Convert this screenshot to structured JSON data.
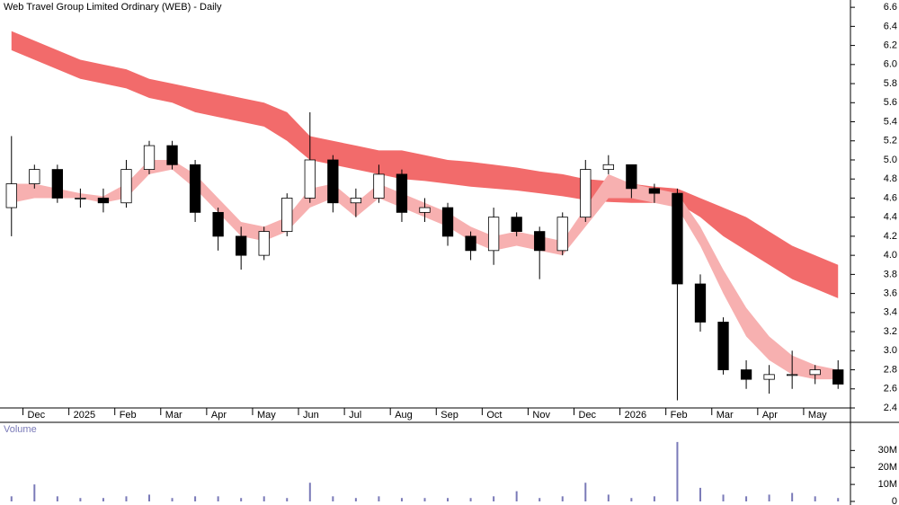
{
  "chart_data": [
    {
      "type": "candlestick",
      "title": "Web Travel Group Limited Ordinary (WEB) - Daily",
      "categories": [
        null,
        "Dec",
        null,
        "2025",
        null,
        "Feb",
        null,
        "Mar",
        null,
        "Apr",
        null,
        "May",
        null,
        "Jun",
        null,
        "Jul",
        null,
        "Aug",
        null,
        "Sep",
        null,
        "Oct",
        null,
        "Nov",
        null,
        "Dec",
        null,
        "2026",
        null,
        "Feb",
        null,
        "Mar",
        null,
        "Apr",
        null,
        "May",
        null
      ],
      "open": [
        4.5,
        4.75,
        4.9,
        4.6,
        4.6,
        4.55,
        4.9,
        5.15,
        4.95,
        4.45,
        4.2,
        4.0,
        4.25,
        4.6,
        5.0,
        4.55,
        4.6,
        4.85,
        4.45,
        4.5,
        4.2,
        4.05,
        4.4,
        4.25,
        4.05,
        4.4,
        4.9,
        4.95,
        4.7,
        4.65,
        3.7,
        3.3,
        2.8,
        2.7,
        2.75,
        2.75,
        2.8
      ],
      "high": [
        5.25,
        4.95,
        4.95,
        4.7,
        4.7,
        5.0,
        5.2,
        5.2,
        5.0,
        4.5,
        4.3,
        4.3,
        4.65,
        5.5,
        5.05,
        4.7,
        4.95,
        4.9,
        4.6,
        4.55,
        4.25,
        4.5,
        4.45,
        4.3,
        4.45,
        5.0,
        5.05,
        4.95,
        4.75,
        4.7,
        3.8,
        3.35,
        2.9,
        2.85,
        3.0,
        2.85,
        2.9
      ],
      "low": [
        4.2,
        4.7,
        4.55,
        4.5,
        4.45,
        4.5,
        4.85,
        4.9,
        4.35,
        4.05,
        3.85,
        3.95,
        4.2,
        4.55,
        4.45,
        4.4,
        4.55,
        4.35,
        4.35,
        4.1,
        3.95,
        3.9,
        4.2,
        3.75,
        4.0,
        4.35,
        4.85,
        4.6,
        4.55,
        2.48,
        3.2,
        2.75,
        2.6,
        2.55,
        2.6,
        2.65,
        2.6
      ],
      "close": [
        4.75,
        4.9,
        4.6,
        4.6,
        4.55,
        4.9,
        5.15,
        4.95,
        4.45,
        4.2,
        4.0,
        4.25,
        4.6,
        5.0,
        4.55,
        4.6,
        4.85,
        4.45,
        4.5,
        4.2,
        4.05,
        4.4,
        4.25,
        4.05,
        4.4,
        4.9,
        4.95,
        4.7,
        4.65,
        3.7,
        3.3,
        2.8,
        2.7,
        2.75,
        2.75,
        2.8,
        2.65
      ],
      "bands": [
        {
          "color": "#f26b6b",
          "upper": [
            6.35,
            6.25,
            6.15,
            6.05,
            6.0,
            5.95,
            5.85,
            5.8,
            5.75,
            5.7,
            5.65,
            5.6,
            5.5,
            5.25,
            5.2,
            5.15,
            5.1,
            5.1,
            5.05,
            5.0,
            4.98,
            4.95,
            4.92,
            4.88,
            4.85,
            4.8,
            4.78,
            4.75,
            4.72,
            4.7,
            4.6,
            4.5,
            4.4,
            4.25,
            4.1,
            4.0,
            3.9
          ],
          "lower": [
            6.15,
            6.05,
            5.95,
            5.85,
            5.8,
            5.75,
            5.65,
            5.6,
            5.5,
            5.45,
            5.4,
            5.35,
            5.2,
            5.0,
            4.95,
            4.9,
            4.85,
            4.8,
            4.78,
            4.75,
            4.72,
            4.7,
            4.68,
            4.65,
            4.62,
            4.58,
            4.56,
            4.55,
            4.55,
            4.55,
            4.4,
            4.2,
            4.05,
            3.9,
            3.75,
            3.65,
            3.55
          ]
        },
        {
          "color": "#f7b0b0",
          "upper": [
            4.75,
            4.75,
            4.7,
            4.65,
            4.62,
            4.75,
            5.0,
            5.0,
            4.85,
            4.6,
            4.35,
            4.3,
            4.4,
            4.7,
            4.75,
            4.55,
            4.75,
            4.65,
            4.55,
            4.45,
            4.3,
            4.2,
            4.25,
            4.2,
            4.15,
            4.5,
            4.85,
            4.75,
            4.7,
            4.65,
            4.3,
            3.85,
            3.45,
            3.15,
            2.95,
            2.85,
            2.8
          ],
          "lower": [
            4.55,
            4.6,
            4.6,
            4.6,
            4.55,
            4.6,
            4.85,
            4.9,
            4.7,
            4.45,
            4.2,
            4.15,
            4.25,
            4.5,
            4.6,
            4.4,
            4.6,
            4.5,
            4.4,
            4.3,
            4.15,
            4.05,
            4.1,
            4.05,
            4.0,
            4.3,
            4.6,
            4.6,
            4.55,
            4.5,
            4.1,
            3.6,
            3.15,
            2.9,
            2.75,
            2.7,
            2.7
          ]
        }
      ],
      "ylim": [
        2.4,
        6.62
      ],
      "yticks": [
        2.4,
        2.6,
        2.8,
        {
          "value": 3.0,
          "label": "3.0"
        },
        3.2,
        3.4,
        3.6,
        3.8,
        {
          "value": 4.0,
          "label": "4.0"
        },
        4.2,
        4.4,
        4.6,
        4.8,
        {
          "value": 5.0,
          "label": "5.0"
        },
        5.2,
        5.4,
        5.6,
        5.8,
        {
          "value": 6.0,
          "label": "6.0"
        },
        6.2,
        6.4,
        6.6
      ]
    },
    {
      "type": "bar",
      "title": "Volume",
      "color": "#7a7ab8",
      "values": [
        3000000,
        10000000,
        3000000,
        2000000,
        2000000,
        3000000,
        4000000,
        2000000,
        3000000,
        3000000,
        2000000,
        3000000,
        2000000,
        11000000,
        3000000,
        2000000,
        3000000,
        2000000,
        2000000,
        2000000,
        2000000,
        3000000,
        6000000,
        2000000,
        3000000,
        11000000,
        4000000,
        2000000,
        3000000,
        35000000,
        8000000,
        4000000,
        3000000,
        4000000,
        5000000,
        3000000,
        2000000
      ],
      "ylim": [
        0,
        36000000
      ],
      "yticks": [
        0,
        {
          "value": 10000000,
          "label": "10M"
        },
        {
          "value": 20000000,
          "label": "20M"
        },
        {
          "value": 30000000,
          "label": "30M"
        }
      ]
    }
  ]
}
